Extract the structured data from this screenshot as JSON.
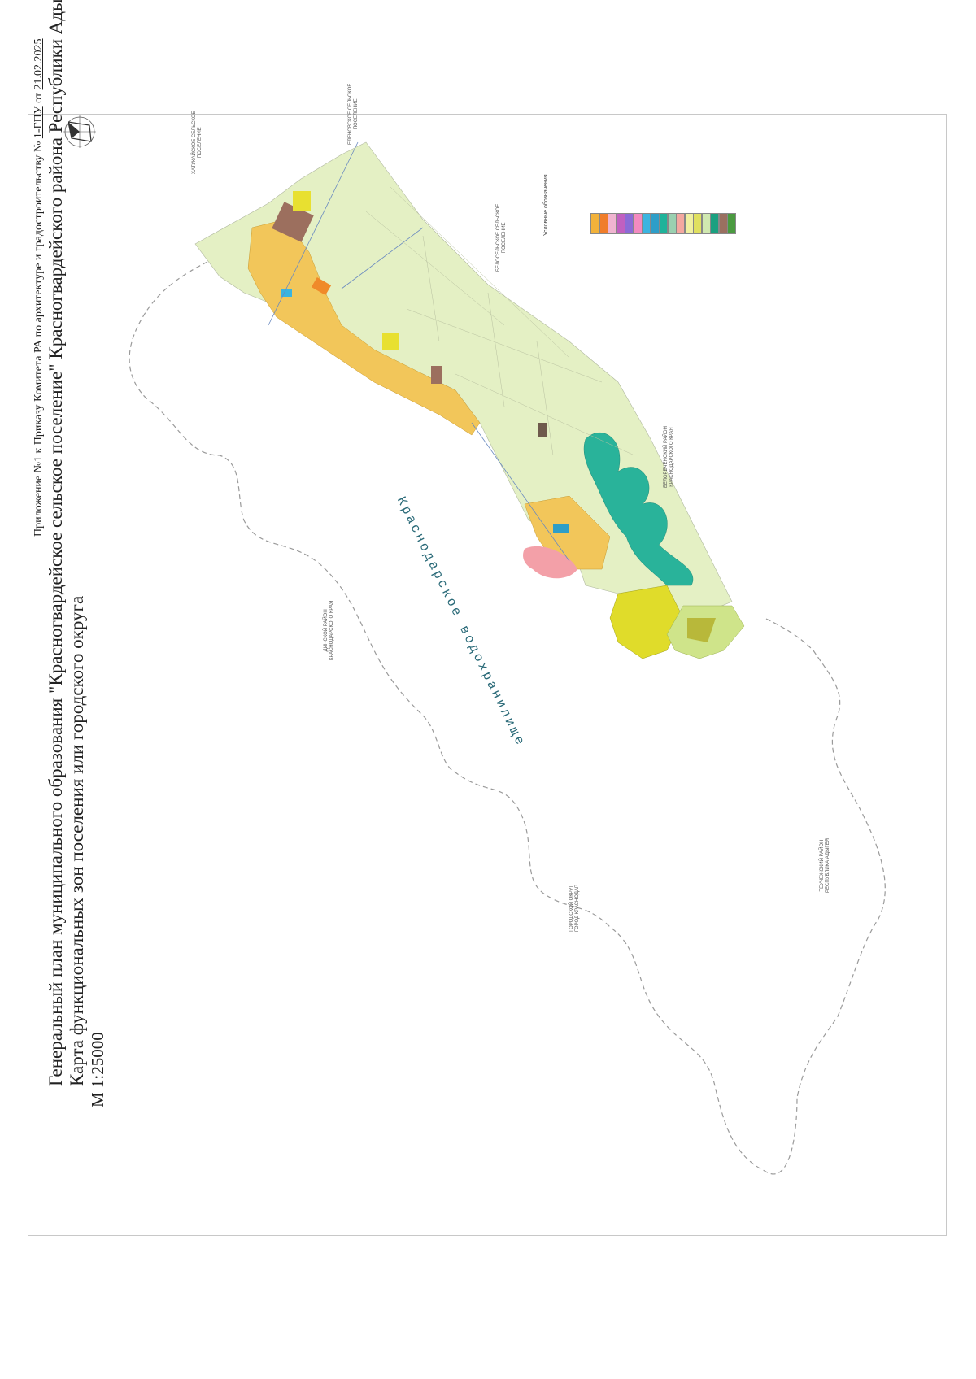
{
  "header": {
    "appendix": {
      "prefix": "Приложение №1 к Приказу Комитета РА по архитектуре и градостроительству №",
      "number": "1-ГПУ",
      "date_prefix": "от",
      "date": "21.02.2025"
    },
    "title_line1": "Генеральный план муниципального образования \"Красногвардейское сельское поселение\" Красногвардейского района Республики Адыгея",
    "title_line2": "Карта функциональных зон поселения или городского округа",
    "scale": "М 1:25000"
  },
  "compass": {
    "north_letter": "С",
    "icon": "compass-rose-icon"
  },
  "map": {
    "water_label": "Краснодарское водохранилище",
    "neighbor_labels": [
      {
        "id": "neighbor-north-west",
        "lines": [
          "ХАТУКАЙСКОЕ СЕЛЬСКОЕ",
          "ПОСЕЛЕНИЕ"
        ]
      },
      {
        "id": "neighbor-north",
        "lines": [
          "ЕЛЕНОВСКОЕ СЕЛЬСКОЕ",
          "ПОСЕЛЕНИЕ"
        ]
      },
      {
        "id": "neighbor-north-east",
        "lines": [
          "БЕЛОСЕЛЬСКОЕ СЕЛЬСКОЕ",
          "ПОСЕЛЕНИЕ"
        ]
      },
      {
        "id": "neighbor-east",
        "lines": [
          "БЕЛОРЕЧЕНСКИЙ РАЙОН",
          "КРАСНОДАРСКОГО КРАЯ"
        ]
      },
      {
        "id": "neighbor-west",
        "lines": [
          "ДИНСКОЙ РАЙОН",
          "КРАСНОДАРСКОГО КРАЯ"
        ]
      },
      {
        "id": "neighbor-south",
        "lines": [
          "ГОРОДСКОЙ ОКРУГ",
          "ГОРОД КРАСНОДАР"
        ]
      },
      {
        "id": "neighbor-south-east",
        "lines": [
          "ТЕУЧЕЖСКИЙ РАЙОН",
          "РЕСПУБЛИКА АДЫГЕЯ"
        ]
      }
    ],
    "colors": {
      "agri": "#e4f0c4",
      "residential": "#f2c65a",
      "water_zone": "#29b39a",
      "industrial": "#9c6f5e",
      "recreation": "#cfe48a",
      "special": "#e8e030",
      "pink": "#f3a0a8",
      "boundary": "#8a8a8a"
    }
  },
  "legend": {
    "title": "Условные обозначения",
    "swatches": [
      "#f2b23a",
      "#f07d2a",
      "#f0b4d0",
      "#c060c0",
      "#8b6bd6",
      "#f28ac0",
      "#3bb4e0",
      "#2e9ec8",
      "#1fb39a",
      "#9ad0b0",
      "#f4a8a0",
      "#f0f0a0",
      "#e0e060",
      "#d0e8b0",
      "#1aa080",
      "#9a7060",
      "#4a9a40"
    ]
  }
}
